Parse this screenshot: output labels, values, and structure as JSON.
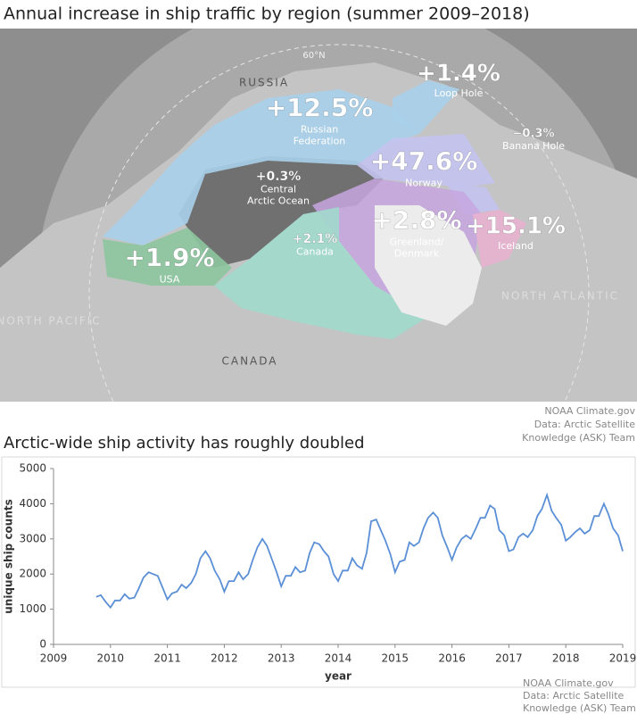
{
  "map": {
    "title": "Annual increase in ship traffic by region (summer 2009–2018)",
    "places": [
      "RUSSIA",
      "60°N",
      "NORTH PACIFIC",
      "CANADA",
      "NORTH ATLANTIC"
    ],
    "regions": [
      {
        "change": "+1.4%",
        "name": [
          "Loop Hole"
        ]
      },
      {
        "change": "+12.5%",
        "name": [
          "Russian",
          "Federation"
        ]
      },
      {
        "change": "−0.3%",
        "name": [
          "Banana Hole"
        ]
      },
      {
        "change": "+47.6%",
        "name": [
          "Norway"
        ]
      },
      {
        "change": "+0.3%",
        "name": [
          "Central",
          "Arctic Ocean"
        ]
      },
      {
        "change": "+2.8%",
        "name": [
          "Greenland/",
          "Denmark"
        ]
      },
      {
        "change": "+15.1%",
        "name": [
          "Iceland"
        ]
      },
      {
        "change": "+2.1%",
        "name": [
          "Canada"
        ]
      },
      {
        "change": "+1.9%",
        "name": [
          "USA"
        ]
      }
    ],
    "credit": [
      "NOAA Climate.gov",
      "Data: Arctic Satellite",
      "Knowledge (ASK) Team"
    ]
  },
  "chart_data": {
    "type": "line",
    "title": "Arctic-wide ship activity has roughly doubled",
    "x_label": "year",
    "y_label": "unique ship counts",
    "x": [
      2009.75,
      2009.83,
      2009.92,
      2010.0,
      2010.08,
      2010.17,
      2010.25,
      2010.33,
      2010.42,
      2010.5,
      2010.58,
      2010.67,
      2010.75,
      2010.83,
      2010.92,
      2011.0,
      2011.08,
      2011.17,
      2011.25,
      2011.33,
      2011.42,
      2011.5,
      2011.58,
      2011.67,
      2011.75,
      2011.83,
      2011.92,
      2012.0,
      2012.08,
      2012.17,
      2012.25,
      2012.33,
      2012.42,
      2012.5,
      2012.58,
      2012.67,
      2012.75,
      2012.83,
      2012.92,
      2013.0,
      2013.08,
      2013.17,
      2013.25,
      2013.33,
      2013.42,
      2013.5,
      2013.58,
      2013.67,
      2013.75,
      2013.83,
      2013.92,
      2014.0,
      2014.08,
      2014.17,
      2014.25,
      2014.33,
      2014.42,
      2014.5,
      2014.58,
      2014.67,
      2014.75,
      2014.83,
      2014.92,
      2015.0,
      2015.08,
      2015.17,
      2015.25,
      2015.33,
      2015.42,
      2015.5,
      2015.58,
      2015.67,
      2015.75,
      2015.83,
      2015.92,
      2016.0,
      2016.08,
      2016.17,
      2016.25,
      2016.33,
      2016.42,
      2016.5,
      2016.58,
      2016.67,
      2016.75,
      2016.83,
      2016.92,
      2017.0,
      2017.08,
      2017.17,
      2017.25,
      2017.33,
      2017.42,
      2017.5,
      2017.58,
      2017.67,
      2017.75,
      2017.83,
      2017.92,
      2018.0,
      2018.08,
      2018.17,
      2018.25,
      2018.33,
      2018.42,
      2018.5,
      2018.58,
      2018.67,
      2018.75,
      2018.83,
      2018.92,
      2019.0
    ],
    "series": [
      {
        "color": "#5b8fd6",
        "values": [
          1350,
          1400,
          1200,
          1050,
          1250,
          1250,
          1430,
          1300,
          1330,
          1600,
          1900,
          2050,
          2000,
          1950,
          1600,
          1280,
          1450,
          1500,
          1700,
          1600,
          1750,
          2000,
          2450,
          2650,
          2450,
          2100,
          1850,
          1500,
          1800,
          1800,
          2050,
          1850,
          2000,
          2400,
          2750,
          3000,
          2800,
          2450,
          2050,
          1650,
          1950,
          1950,
          2200,
          2050,
          2100,
          2600,
          2900,
          2850,
          2650,
          2500,
          2000,
          1800,
          2100,
          2100,
          2450,
          2250,
          2150,
          2600,
          3500,
          3550,
          3250,
          2950,
          2550,
          2050,
          2350,
          2400,
          2900,
          2800,
          2900,
          3300,
          3600,
          3750,
          3600,
          3100,
          2750,
          2400,
          2750,
          3000,
          3100,
          3000,
          3300,
          3600,
          3600,
          3950,
          3850,
          3250,
          3100,
          2650,
          2700,
          3050,
          3150,
          3050,
          3250,
          3650,
          3850,
          4250,
          3800,
          3600,
          3400,
          2950,
          3050,
          3200,
          3300,
          3150,
          3250,
          3650,
          3650,
          4000,
          3700,
          3300,
          3100,
          2650
        ]
      }
    ],
    "xlim": [
      2009,
      2019
    ],
    "xticks": [
      2009,
      2010,
      2011,
      2012,
      2013,
      2014,
      2015,
      2016,
      2017,
      2018,
      2019
    ],
    "ylim": [
      0,
      5000
    ],
    "yticks": [
      0,
      1000,
      2000,
      3000,
      4000,
      5000
    ],
    "credit": [
      "NOAA Climate.gov",
      "Data: Arctic Satellite",
      "Knowledge (ASK) Team"
    ]
  }
}
